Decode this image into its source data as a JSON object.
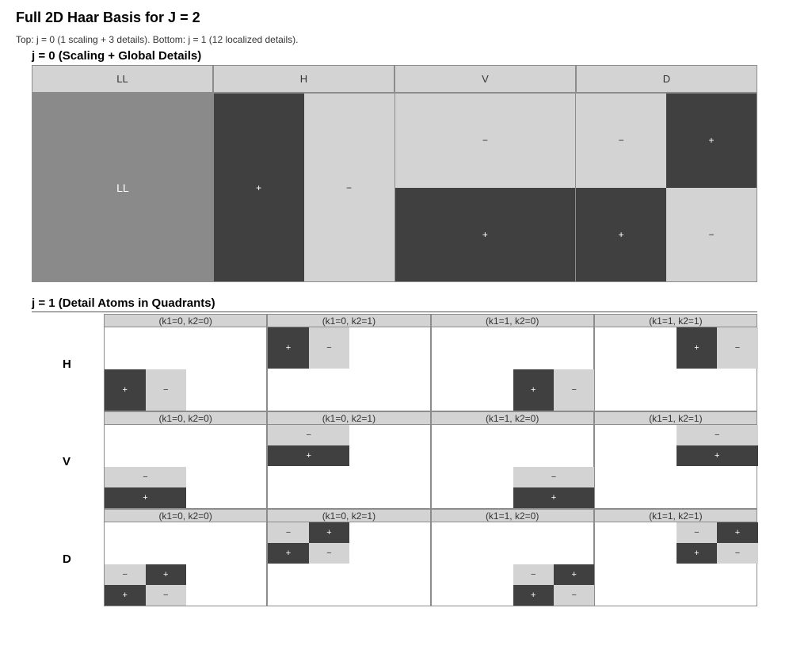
{
  "title": "Full 2D Haar Basis for J = 2",
  "subtitle": "Top: j = 0 (1 scaling + 3 details).   Bottom: j = 1 (12 localized details).",
  "colors": {
    "positive": "#404040",
    "negative": "#d3d3d3",
    "scaling": "#8a8a8a",
    "header": "#d3d3d3",
    "border": "#8c8c8c"
  },
  "j0": {
    "title": "j = 0 (Scaling + Global Details)",
    "headers": [
      "LL",
      "H",
      "V",
      "D"
    ],
    "ll_label": "LL",
    "h": {
      "left": "+",
      "right": "−"
    },
    "v": {
      "top": "−",
      "bottom": "+"
    },
    "d": {
      "tl": "−",
      "tr": "+",
      "bl": "+",
      "br": "−"
    }
  },
  "j1": {
    "title": "j = 1 (Detail Atoms in Quadrants)",
    "row_labels": [
      "H",
      "V",
      "D"
    ],
    "col_labels": [
      "(k1=0, k2=0)",
      "(k1=0, k2=1)",
      "(k1=1, k2=0)",
      "(k1=1, k2=1)"
    ],
    "signs": {
      "plus": "+",
      "minus": "−"
    }
  }
}
